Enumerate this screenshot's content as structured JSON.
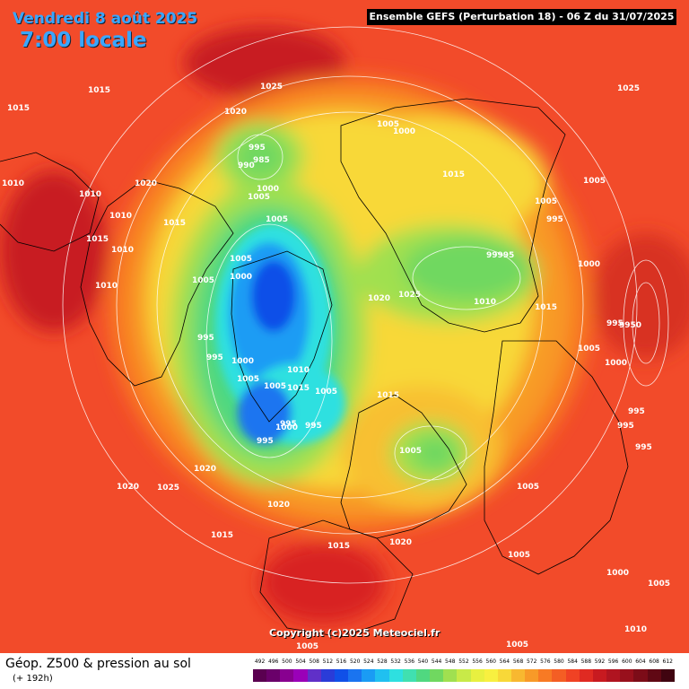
{
  "header": {
    "date": "Vendredi 8 août 2025",
    "time": "7:00 locale",
    "run": "Ensemble GEFS  (Perturbation 18)  -  06 Z du 31/07/2025"
  },
  "footer": {
    "title": "Géop. Z500 & pression au sol",
    "subtitle": "(+ 192h)",
    "credit": "Copyright (c)2025 Meteociel.fr"
  },
  "legend": {
    "ticks": [
      "492",
      "496",
      "500",
      "504",
      "508",
      "512",
      "516",
      "520",
      "524",
      "528",
      "532",
      "536",
      "540",
      "544",
      "548",
      "552",
      "556",
      "560",
      "564",
      "568",
      "572",
      "576",
      "580",
      "584",
      "588",
      "592",
      "596",
      "600",
      "604",
      "608",
      "612"
    ],
    "colors": [
      "#5a0050",
      "#6a006a",
      "#880090",
      "#9a00b8",
      "#6030c8",
      "#2a3cd8",
      "#1050e8",
      "#1a74f0",
      "#1a9cf4",
      "#20c0f0",
      "#2ee0e0",
      "#40e0b0",
      "#50d880",
      "#70d860",
      "#a0e050",
      "#c8ea48",
      "#e8f040",
      "#f8f040",
      "#f8d838",
      "#f8b830",
      "#f89a28",
      "#f87a24",
      "#f45e24",
      "#f04224",
      "#e02a22",
      "#c81a20",
      "#b01420",
      "#98101c",
      "#7c0c18",
      "#600814",
      "#400410"
    ]
  },
  "pressure_labels": [
    {
      "text": "1015"
    },
    {
      "text": "1015"
    },
    {
      "text": "1025"
    },
    {
      "text": "1020"
    },
    {
      "text": "1010"
    },
    {
      "text": "1010"
    },
    {
      "text": "1020"
    },
    {
      "text": "1010"
    },
    {
      "text": "1015"
    },
    {
      "text": "1015"
    },
    {
      "text": "1010"
    },
    {
      "text": "1010"
    },
    {
      "text": "995"
    },
    {
      "text": "990"
    },
    {
      "text": "985"
    },
    {
      "text": "1000"
    },
    {
      "text": "1005"
    },
    {
      "text": "1005"
    },
    {
      "text": "1005"
    },
    {
      "text": "1000"
    },
    {
      "text": "1005"
    },
    {
      "text": "1000"
    },
    {
      "text": "1015"
    },
    {
      "text": "1005"
    },
    {
      "text": "995"
    },
    {
      "text": "1005"
    },
    {
      "text": "99995"
    },
    {
      "text": "1000"
    },
    {
      "text": "1010"
    },
    {
      "text": "1020"
    },
    {
      "text": "1025"
    },
    {
      "text": "1025"
    },
    {
      "text": "1015"
    },
    {
      "text": "995"
    },
    {
      "text": "995"
    },
    {
      "text": "1000"
    },
    {
      "text": "1010"
    },
    {
      "text": "1005"
    },
    {
      "text": "1015"
    },
    {
      "text": "1005"
    },
    {
      "text": "1005"
    },
    {
      "text": "995"
    },
    {
      "text": "1000"
    },
    {
      "text": "995"
    },
    {
      "text": "995"
    },
    {
      "text": "1015"
    },
    {
      "text": "995"
    },
    {
      "text": "9950"
    },
    {
      "text": "1005"
    },
    {
      "text": "1000"
    },
    {
      "text": "995"
    },
    {
      "text": "995"
    },
    {
      "text": "995"
    },
    {
      "text": "1020"
    },
    {
      "text": "1020"
    },
    {
      "text": "1025"
    },
    {
      "text": "1020"
    },
    {
      "text": "1005"
    },
    {
      "text": "1005"
    },
    {
      "text": "1015"
    },
    {
      "text": "1015"
    },
    {
      "text": "1020"
    },
    {
      "text": "1005"
    },
    {
      "text": "1000"
    },
    {
      "text": "1005"
    },
    {
      "text": "1010"
    },
    {
      "text": "1005"
    },
    {
      "text": "1005"
    },
    {
      "text": "1005"
    }
  ]
}
